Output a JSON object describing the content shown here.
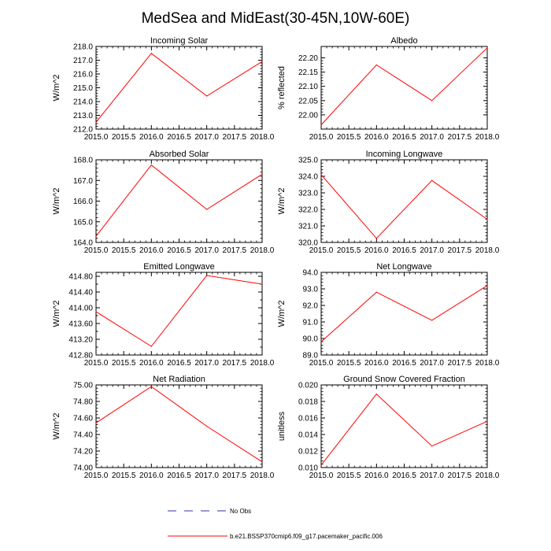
{
  "title": "MedSea and MidEast(30-45N,10W-60E)",
  "colors": {
    "series": "#ff0000",
    "obs": "#3333aa",
    "axis": "#000000"
  },
  "legend": [
    {
      "label": "No Obs",
      "style": "dashed",
      "color": "#3333aa"
    },
    {
      "label": "b.e21.BSSP370cmip6.f09_g17.pacemaker_pacific.006",
      "style": "solid",
      "color": "#ff0000"
    }
  ],
  "chart_data": [
    {
      "type": "line",
      "title": "Incoming Solar",
      "xlabel": "",
      "ylabel": "W/m^2",
      "x": [
        2015,
        2016,
        2017,
        2018
      ],
      "values": [
        212.5,
        217.5,
        214.4,
        216.9
      ],
      "xlim": [
        2015,
        2018
      ],
      "ylim": [
        212,
        218
      ],
      "yticks": [
        212,
        213,
        214,
        215,
        216,
        217,
        218
      ],
      "ydecimals": 1,
      "xticks": [
        2015,
        2015.5,
        2016,
        2016.5,
        2017,
        2017.5,
        2018
      ],
      "xdecimals": 1
    },
    {
      "type": "line",
      "title": "Albedo",
      "xlabel": "",
      "ylabel": "% reflected",
      "x": [
        2015,
        2016,
        2017,
        2018
      ],
      "values": [
        21.965,
        22.175,
        22.05,
        22.235
      ],
      "xlim": [
        2015,
        2018
      ],
      "ylim": [
        21.95,
        22.24
      ],
      "yticks": [
        22.0,
        22.05,
        22.1,
        22.15,
        22.2
      ],
      "ydecimals": 2,
      "xticks": [
        2015,
        2015.5,
        2016,
        2016.5,
        2017,
        2017.5,
        2018
      ],
      "xdecimals": 1
    },
    {
      "type": "line",
      "title": "Absorbed Solar",
      "xlabel": "",
      "ylabel": "W/m^2",
      "x": [
        2015,
        2016,
        2017,
        2018
      ],
      "values": [
        164.3,
        167.75,
        165.6,
        167.3
      ],
      "xlim": [
        2015,
        2018
      ],
      "ylim": [
        164,
        168
      ],
      "yticks": [
        164,
        165,
        166,
        167,
        168
      ],
      "ydecimals": 1,
      "xticks": [
        2015,
        2015.5,
        2016,
        2016.5,
        2017,
        2017.5,
        2018
      ],
      "xdecimals": 1
    },
    {
      "type": "line",
      "title": "Incoming Longwave",
      "xlabel": "",
      "ylabel": "W/m^2",
      "x": [
        2015,
        2016,
        2017,
        2018
      ],
      "values": [
        324.1,
        320.25,
        323.75,
        321.4
      ],
      "xlim": [
        2015,
        2018
      ],
      "ylim": [
        320,
        325
      ],
      "yticks": [
        320,
        321,
        322,
        323,
        324,
        325
      ],
      "ydecimals": 1,
      "xticks": [
        2015,
        2015.5,
        2016,
        2016.5,
        2017,
        2017.5,
        2018
      ],
      "xdecimals": 1
    },
    {
      "type": "line",
      "title": "Emitted Longwave",
      "xlabel": "",
      "ylabel": "W/m^2",
      "x": [
        2015,
        2016,
        2017,
        2018
      ],
      "values": [
        413.9,
        413.02,
        414.82,
        414.6
      ],
      "xlim": [
        2015,
        2018
      ],
      "ylim": [
        412.8,
        414.9
      ],
      "yticks": [
        412.8,
        413.0,
        413.2,
        413.4,
        413.6,
        413.8,
        414.0,
        414.2,
        414.4,
        414.6,
        414.8
      ],
      "ydecimals": 2,
      "labelEvery": 2,
      "xticks": [
        2015,
        2015.5,
        2016,
        2016.5,
        2017,
        2017.5,
        2018
      ],
      "xdecimals": 1
    },
    {
      "type": "line",
      "title": "Net Longwave",
      "xlabel": "",
      "ylabel": "W/m^2",
      "x": [
        2015,
        2016,
        2017,
        2018
      ],
      "values": [
        89.8,
        92.8,
        91.1,
        93.2
      ],
      "xlim": [
        2015,
        2018
      ],
      "ylim": [
        89,
        94
      ],
      "yticks": [
        89,
        90,
        91,
        92,
        93,
        94
      ],
      "ydecimals": 1,
      "xticks": [
        2015,
        2015.5,
        2016,
        2016.5,
        2017,
        2017.5,
        2018
      ],
      "xdecimals": 1
    },
    {
      "type": "line",
      "title": "Net Radiation",
      "xlabel": "",
      "ylabel": "W/m^2",
      "x": [
        2015,
        2016,
        2017,
        2018
      ],
      "values": [
        74.54,
        74.98,
        74.5,
        74.07
      ],
      "xlim": [
        2015,
        2018
      ],
      "ylim": [
        74.0,
        75.0
      ],
      "yticks": [
        74.0,
        74.2,
        74.4,
        74.6,
        74.8,
        75.0
      ],
      "ydecimals": 2,
      "xticks": [
        2015,
        2015.5,
        2016,
        2016.5,
        2017,
        2017.5,
        2018
      ],
      "xdecimals": 1
    },
    {
      "type": "line",
      "title": "Ground Snow Covered Fraction",
      "xlabel": "",
      "ylabel": "unitless",
      "x": [
        2015,
        2016,
        2017,
        2018
      ],
      "values": [
        0.0103,
        0.0189,
        0.0126,
        0.0156
      ],
      "xlim": [
        2015,
        2018
      ],
      "ylim": [
        0.01,
        0.02
      ],
      "yticks": [
        0.01,
        0.012,
        0.014,
        0.016,
        0.018,
        0.02
      ],
      "ydecimals": 3,
      "xticks": [
        2015,
        2015.5,
        2016,
        2016.5,
        2017,
        2017.5,
        2018
      ],
      "xdecimals": 1
    }
  ]
}
